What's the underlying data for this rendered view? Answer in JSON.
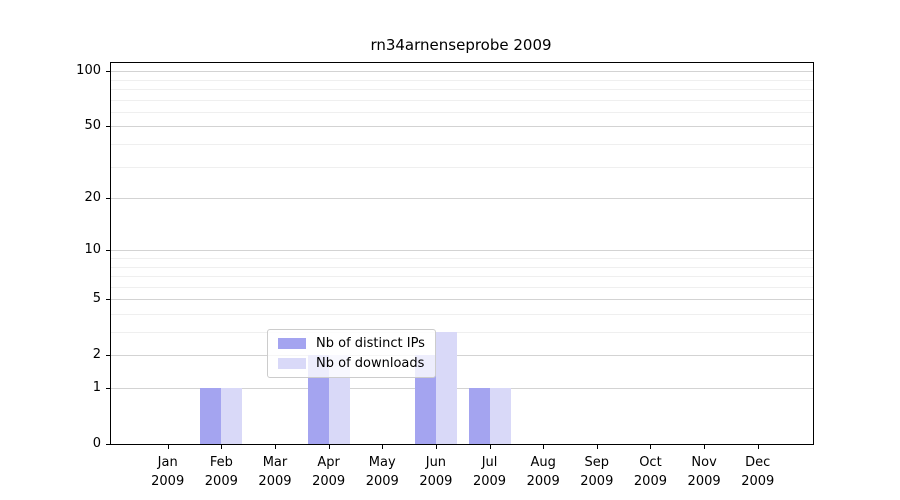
{
  "chart_data": {
    "type": "bar",
    "title": "rn34arnenseprobe 2009",
    "categories": [
      "Jan",
      "Feb",
      "Mar",
      "Apr",
      "May",
      "Jun",
      "Jul",
      "Aug",
      "Sep",
      "Oct",
      "Nov",
      "Dec"
    ],
    "year_label": "2009",
    "series": [
      {
        "name": "Nb of distinct IPs",
        "color": "#a4a4f0",
        "values": [
          0,
          1,
          0,
          2,
          0,
          2,
          1,
          0,
          0,
          0,
          0,
          0
        ]
      },
      {
        "name": "Nb of downloads",
        "color": "#d9d9f8",
        "values": [
          0,
          1,
          0,
          2,
          0,
          3,
          1,
          0,
          0,
          0,
          0,
          0
        ]
      }
    ],
    "y_axis": {
      "scale": "log1p",
      "major_ticks": [
        0,
        1,
        2,
        5,
        10,
        20,
        50,
        100
      ],
      "minor_gridlines": [
        3,
        4,
        6,
        7,
        8,
        9,
        30,
        40,
        60,
        70,
        80,
        90
      ],
      "ylim": [
        0,
        110
      ]
    },
    "legend": {
      "position": "lower-center-right"
    },
    "grid": true
  },
  "colors": {
    "grid_major": "#d3d3d3",
    "grid_minor": "#efefef",
    "axis": "#000000",
    "legend_border": "#cccccc"
  }
}
